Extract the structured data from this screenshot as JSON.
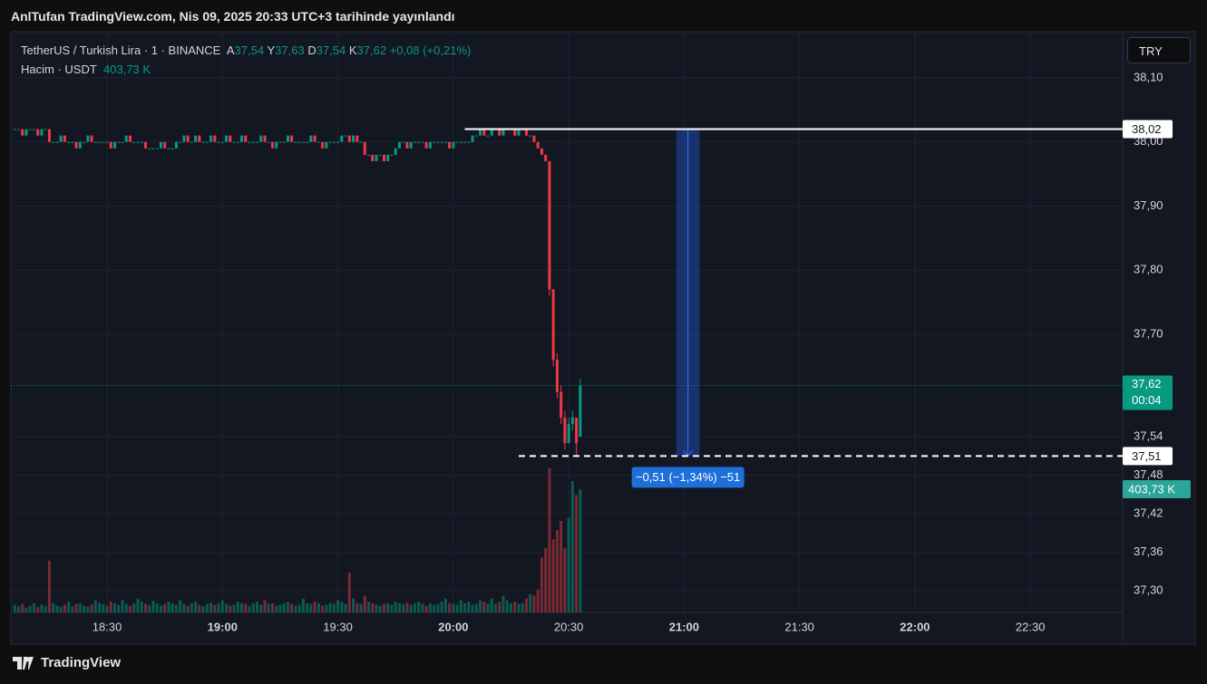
{
  "header": {
    "title": "AnlTufan TradingView.com, Nis 09, 2025 20:33 UTC+3 tarihinde yayınlandı"
  },
  "footer": {
    "brand": "TradingView"
  },
  "chart_data": {
    "type": "candlestick",
    "currency_button": "TRY",
    "legend": {
      "symbol": "TetherUS / Turkish Lira · 1 · BINANCE",
      "ohlc": [
        {
          "key": "A",
          "label": "37,54"
        },
        {
          "key": "Y",
          "label": "37,63"
        },
        {
          "key": "D",
          "label": "37,54"
        },
        {
          "key": "K",
          "label": "37,62"
        }
      ],
      "change": "+0,08 (+0,21%)",
      "volume_title": "Hacim · USDT",
      "volume_label": "403,73 K"
    },
    "x": [
      "18:06",
      "18:07",
      "18:08",
      "18:09",
      "18:10",
      "18:11",
      "18:12",
      "18:13",
      "18:14",
      "18:15",
      "18:16",
      "18:17",
      "18:18",
      "18:19",
      "18:20",
      "18:21",
      "18:22",
      "18:23",
      "18:24",
      "18:25",
      "18:26",
      "18:27",
      "18:28",
      "18:29",
      "18:30",
      "18:31",
      "18:32",
      "18:33",
      "18:34",
      "18:35",
      "18:36",
      "18:37",
      "18:38",
      "18:39",
      "18:40",
      "18:41",
      "18:42",
      "18:43",
      "18:44",
      "18:45",
      "18:46",
      "18:47",
      "18:48",
      "18:49",
      "18:50",
      "18:51",
      "18:52",
      "18:53",
      "18:54",
      "18:55",
      "18:56",
      "18:57",
      "18:58",
      "18:59",
      "19:00",
      "19:01",
      "19:02",
      "19:03",
      "19:04",
      "19:05",
      "19:06",
      "19:07",
      "19:08",
      "19:09",
      "19:10",
      "19:11",
      "19:12",
      "19:13",
      "19:14",
      "19:15",
      "19:16",
      "19:17",
      "19:18",
      "19:19",
      "19:20",
      "19:21",
      "19:22",
      "19:23",
      "19:24",
      "19:25",
      "19:26",
      "19:27",
      "19:28",
      "19:29",
      "19:30",
      "19:31",
      "19:32",
      "19:33",
      "19:34",
      "19:35",
      "19:36",
      "19:37",
      "19:38",
      "19:39",
      "19:40",
      "19:41",
      "19:42",
      "19:43",
      "19:44",
      "19:45",
      "19:46",
      "19:47",
      "19:48",
      "19:49",
      "19:50",
      "19:51",
      "19:52",
      "19:53",
      "19:54",
      "19:55",
      "19:56",
      "19:57",
      "19:58",
      "19:59",
      "20:00",
      "20:01",
      "20:02",
      "20:03",
      "20:04",
      "20:05",
      "20:06",
      "20:07",
      "20:08",
      "20:09",
      "20:10",
      "20:11",
      "20:12",
      "20:13",
      "20:14",
      "20:15",
      "20:16",
      "20:17",
      "20:18",
      "20:19",
      "20:20",
      "20:21",
      "20:22",
      "20:23",
      "20:24",
      "20:25",
      "20:26",
      "20:27",
      "20:28",
      "20:29",
      "20:30",
      "20:31",
      "20:32",
      "20:33"
    ],
    "open": [
      38.02,
      38.02,
      38.02,
      38.01,
      38.02,
      38.02,
      38.02,
      38.01,
      38.02,
      38.02,
      38.0,
      38.0,
      38.0,
      38.01,
      38.0,
      38.0,
      38.0,
      37.99,
      38.0,
      38.0,
      38.01,
      38.0,
      38.0,
      38.0,
      38.0,
      38.0,
      37.99,
      38.0,
      38.0,
      38.0,
      38.01,
      38.0,
      38.0,
      38.0,
      38.0,
      37.99,
      37.99,
      37.99,
      37.99,
      38.0,
      37.99,
      37.99,
      37.99,
      38.0,
      38.0,
      38.01,
      38.0,
      38.0,
      38.01,
      38.0,
      38.0,
      38.0,
      38.01,
      38.0,
      38.0,
      38.0,
      38.01,
      38.0,
      38.0,
      38.0,
      38.01,
      38.0,
      38.0,
      38.0,
      38.0,
      38.01,
      38.0,
      38.0,
      37.99,
      38.0,
      38.0,
      38.0,
      38.01,
      38.0,
      38.0,
      38.0,
      38.0,
      38.0,
      38.01,
      38.0,
      38.0,
      37.99,
      38.0,
      38.0,
      38.0,
      38.0,
      38.01,
      38.01,
      38.0,
      38.01,
      38.0,
      38.0,
      37.98,
      37.98,
      37.97,
      37.98,
      37.98,
      37.97,
      37.98,
      37.98,
      37.99,
      38.0,
      38.0,
      37.99,
      38.0,
      38.0,
      38.0,
      38.0,
      37.99,
      38.0,
      38.0,
      38.0,
      38.0,
      38.0,
      37.99,
      38.0,
      38.0,
      38.0,
      38.0,
      38.0,
      38.01,
      38.01,
      38.02,
      38.01,
      38.01,
      38.02,
      38.02,
      38.01,
      38.02,
      38.02,
      38.02,
      38.01,
      38.02,
      38.02,
      38.01,
      38.01,
      38.0,
      37.99,
      37.98,
      37.97,
      37.77,
      37.66,
      37.61,
      37.57,
      37.53,
      37.56,
      37.57,
      37.54
    ],
    "high": [
      38.02,
      38.02,
      38.02,
      38.02,
      38.02,
      38.02,
      38.02,
      38.02,
      38.02,
      38.02,
      38.0,
      38.0,
      38.01,
      38.01,
      38.0,
      38.0,
      38.0,
      38.0,
      38.0,
      38.01,
      38.01,
      38.0,
      38.0,
      38.0,
      38.0,
      38.0,
      38.0,
      38.0,
      38.0,
      38.01,
      38.01,
      38.0,
      38.0,
      38.0,
      38.0,
      37.99,
      37.99,
      37.99,
      38.0,
      38.0,
      37.99,
      37.99,
      38.0,
      38.0,
      38.01,
      38.01,
      38.0,
      38.01,
      38.01,
      38.0,
      38.0,
      38.01,
      38.01,
      38.0,
      38.0,
      38.01,
      38.01,
      38.0,
      38.0,
      38.01,
      38.01,
      38.0,
      38.0,
      38.0,
      38.01,
      38.01,
      38.0,
      38.0,
      38.0,
      38.0,
      38.0,
      38.01,
      38.01,
      38.0,
      38.0,
      38.0,
      38.0,
      38.01,
      38.01,
      38.0,
      38.0,
      38.0,
      38.0,
      38.0,
      38.0,
      38.01,
      38.01,
      38.01,
      38.01,
      38.01,
      38.0,
      38.0,
      37.98,
      37.98,
      37.98,
      37.98,
      37.98,
      37.98,
      37.98,
      37.99,
      38.0,
      38.0,
      38.0,
      38.0,
      38.0,
      38.0,
      38.0,
      38.0,
      38.0,
      38.0,
      38.0,
      38.0,
      38.0,
      38.0,
      38.0,
      38.0,
      38.0,
      38.0,
      38.0,
      38.01,
      38.01,
      38.02,
      38.02,
      38.01,
      38.02,
      38.02,
      38.02,
      38.02,
      38.02,
      38.02,
      38.02,
      38.02,
      38.02,
      38.02,
      38.01,
      38.01,
      38.0,
      37.99,
      37.98,
      37.97,
      37.77,
      37.67,
      37.62,
      37.58,
      37.57,
      37.58,
      37.57,
      37.63
    ],
    "low": [
      38.02,
      38.02,
      38.01,
      38.01,
      38.02,
      38.02,
      38.01,
      38.01,
      38.02,
      38.0,
      38.0,
      38.0,
      38.0,
      38.0,
      38.0,
      38.0,
      37.99,
      37.99,
      38.0,
      38.0,
      38.0,
      38.0,
      38.0,
      38.0,
      38.0,
      37.99,
      37.99,
      38.0,
      38.0,
      38.0,
      38.0,
      38.0,
      38.0,
      38.0,
      37.99,
      37.99,
      37.99,
      37.99,
      37.99,
      37.99,
      37.99,
      37.99,
      37.99,
      38.0,
      38.0,
      38.0,
      38.0,
      38.0,
      38.0,
      38.0,
      38.0,
      38.0,
      38.0,
      38.0,
      38.0,
      38.0,
      38.0,
      38.0,
      38.0,
      38.0,
      38.0,
      38.0,
      38.0,
      38.0,
      38.0,
      38.0,
      38.0,
      37.99,
      37.99,
      38.0,
      38.0,
      38.0,
      38.0,
      38.0,
      38.0,
      38.0,
      38.0,
      38.0,
      38.0,
      38.0,
      37.99,
      37.99,
      38.0,
      38.0,
      38.0,
      38.0,
      38.01,
      38.0,
      38.0,
      38.0,
      38.0,
      37.98,
      37.98,
      37.97,
      37.97,
      37.98,
      37.97,
      37.97,
      37.98,
      37.98,
      37.99,
      38.0,
      37.99,
      37.99,
      38.0,
      38.0,
      38.0,
      37.99,
      37.99,
      38.0,
      38.0,
      38.0,
      38.0,
      37.99,
      37.99,
      38.0,
      38.0,
      38.0,
      38.0,
      38.0,
      38.01,
      38.01,
      38.01,
      38.01,
      38.01,
      38.02,
      38.01,
      38.01,
      38.02,
      38.02,
      38.01,
      38.01,
      38.02,
      38.01,
      38.01,
      38.0,
      37.99,
      37.98,
      37.97,
      37.76,
      37.65,
      37.6,
      37.56,
      37.52,
      37.53,
      37.55,
      37.51,
      37.54
    ],
    "close": [
      38.02,
      38.02,
      38.01,
      38.02,
      38.02,
      38.02,
      38.01,
      38.02,
      38.02,
      38.0,
      38.0,
      38.0,
      38.01,
      38.0,
      38.0,
      38.0,
      37.99,
      38.0,
      38.0,
      38.01,
      38.0,
      38.0,
      38.0,
      38.0,
      38.0,
      37.99,
      38.0,
      38.0,
      38.0,
      38.01,
      38.0,
      38.0,
      38.0,
      38.0,
      37.99,
      37.99,
      37.99,
      37.99,
      38.0,
      37.99,
      37.99,
      37.99,
      38.0,
      38.0,
      38.01,
      38.0,
      38.0,
      38.01,
      38.0,
      38.0,
      38.0,
      38.01,
      38.0,
      38.0,
      38.0,
      38.01,
      38.0,
      38.0,
      38.0,
      38.01,
      38.0,
      38.0,
      38.0,
      38.0,
      38.01,
      38.0,
      38.0,
      37.99,
      38.0,
      38.0,
      38.0,
      38.01,
      38.0,
      38.0,
      38.0,
      38.0,
      38.0,
      38.01,
      38.0,
      38.0,
      37.99,
      38.0,
      38.0,
      38.0,
      38.0,
      38.01,
      38.01,
      38.0,
      38.01,
      38.0,
      38.0,
      37.98,
      37.98,
      37.97,
      37.98,
      37.98,
      37.97,
      37.98,
      37.98,
      37.99,
      38.0,
      38.0,
      37.99,
      38.0,
      38.0,
      38.0,
      38.0,
      37.99,
      38.0,
      38.0,
      38.0,
      38.0,
      38.0,
      37.99,
      38.0,
      38.0,
      38.0,
      38.0,
      38.0,
      38.01,
      38.01,
      38.02,
      38.01,
      38.01,
      38.02,
      38.02,
      38.01,
      38.02,
      38.02,
      38.02,
      38.01,
      38.02,
      38.02,
      38.01,
      38.01,
      38.0,
      37.99,
      37.98,
      37.97,
      37.77,
      37.66,
      37.61,
      37.57,
      37.53,
      37.56,
      37.57,
      37.53,
      37.62
    ],
    "volume": [
      25,
      20,
      28,
      15,
      22,
      30,
      18,
      25,
      20,
      170,
      30,
      22,
      18,
      25,
      35,
      20,
      28,
      30,
      22,
      18,
      25,
      40,
      32,
      28,
      22,
      35,
      30,
      25,
      40,
      28,
      22,
      30,
      45,
      35,
      28,
      25,
      38,
      30,
      22,
      28,
      35,
      30,
      25,
      40,
      28,
      22,
      30,
      35,
      25,
      20,
      28,
      32,
      25,
      30,
      40,
      28,
      22,
      25,
      35,
      30,
      28,
      22,
      30,
      35,
      25,
      40,
      28,
      30,
      22,
      25,
      30,
      35,
      28,
      22,
      25,
      45,
      30,
      28,
      35,
      30,
      22,
      25,
      30,
      28,
      40,
      35,
      28,
      130,
      45,
      30,
      28,
      55,
      35,
      30,
      25,
      22,
      28,
      30,
      25,
      35,
      30,
      28,
      32,
      25,
      30,
      35,
      28,
      22,
      30,
      25,
      28,
      35,
      45,
      30,
      28,
      25,
      40,
      30,
      35,
      25,
      28,
      40,
      35,
      30,
      45,
      28,
      35,
      55,
      40,
      30,
      35,
      28,
      30,
      45,
      60,
      55,
      75,
      180,
      210,
      472,
      240,
      270,
      300,
      210,
      310,
      430,
      385,
      403.73
    ],
    "up_color": "#089981",
    "down_color": "#f23645",
    "volume_up_color": "#0c5b52",
    "volume_down_color": "#7b2a33",
    "xlim": [
      "18:05",
      "22:54"
    ],
    "xticks": [
      "18:30",
      "19:00",
      "19:30",
      "20:00",
      "20:30",
      "21:00",
      "21:30",
      "22:00",
      "22:30"
    ],
    "ylim": [
      37.266,
      38.172
    ],
    "yticks": [
      {
        "value": 38.1,
        "label": "38,10"
      },
      {
        "value": 38.0,
        "label": "38,00"
      },
      {
        "value": 37.9,
        "label": "37,90"
      },
      {
        "value": 37.8,
        "label": "37,80"
      },
      {
        "value": 37.7,
        "label": "37,70"
      },
      {
        "value": 37.54,
        "label": "37,54"
      },
      {
        "value": 37.48,
        "label": "37,48"
      },
      {
        "value": 37.42,
        "label": "37,42"
      },
      {
        "value": 37.36,
        "label": "37,36"
      },
      {
        "value": 37.3,
        "label": "37,30"
      }
    ],
    "volume_ylim": [
      0,
      1903
    ],
    "grid": true,
    "hlines": [
      {
        "value": 38.02,
        "label": "38,02",
        "start": "20:03",
        "style": "solid"
      },
      {
        "value": 37.51,
        "label": "37,51",
        "start": "20:17",
        "style": "dashed"
      }
    ],
    "last_price": {
      "value": 37.62,
      "label": "37,62",
      "countdown": "00:04"
    },
    "measure": {
      "x": [
        "20:58",
        "21:04"
      ],
      "from": 38.02,
      "to": 37.51,
      "label": "−0,51 (−1,34%) −51"
    }
  }
}
